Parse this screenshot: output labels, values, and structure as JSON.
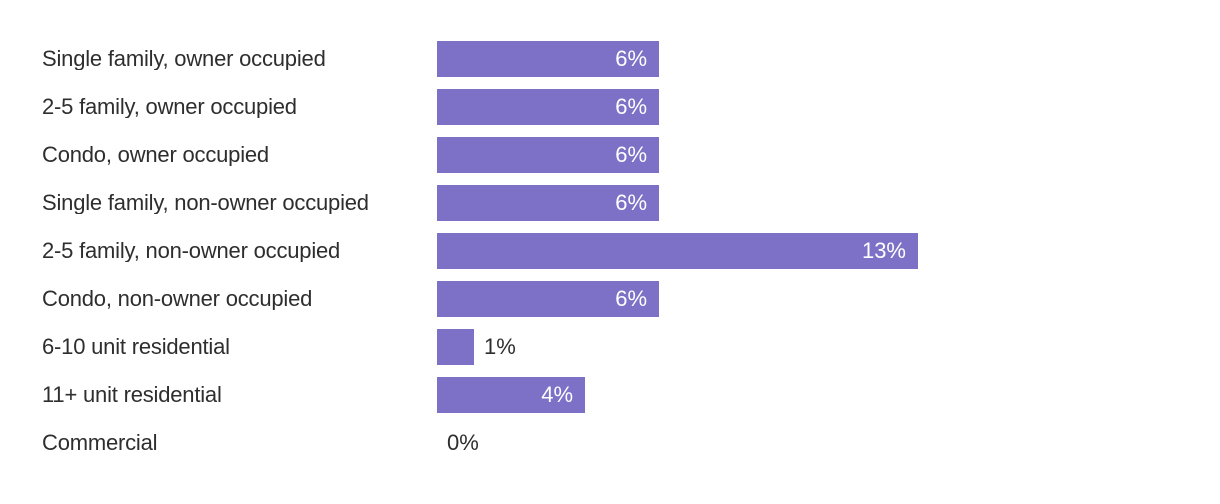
{
  "chart_data": {
    "type": "bar",
    "orientation": "horizontal",
    "title": "",
    "xlabel": "",
    "ylabel": "",
    "xlim": [
      0,
      13
    ],
    "grid": false,
    "legend": "none",
    "categories": [
      "Single family, owner occupied",
      "2-5 family, owner occupied",
      "Condo, owner occupied",
      "Single family, non-owner occupied",
      "2-5 family, non-owner occupied",
      "Condo, non-owner occupied",
      "6-10 unit residential",
      "11+ unit residential",
      "Commercial"
    ],
    "values": [
      6,
      6,
      6,
      6,
      13,
      6,
      1,
      4,
      0
    ],
    "value_labels": [
      "6%",
      "6%",
      "6%",
      "6%",
      "13%",
      "6%",
      "1%",
      "4%",
      "0%"
    ],
    "label_positions": [
      "inside",
      "inside",
      "inside",
      "inside",
      "inside",
      "inside",
      "outside",
      "inside",
      "outside"
    ],
    "colors": {
      "bar": "#7C71C7",
      "inside_label": "#FFFFFF",
      "outside_label": "#2E2E2E",
      "category_label": "#2E2E2E",
      "background": "#FFFFFF"
    }
  }
}
